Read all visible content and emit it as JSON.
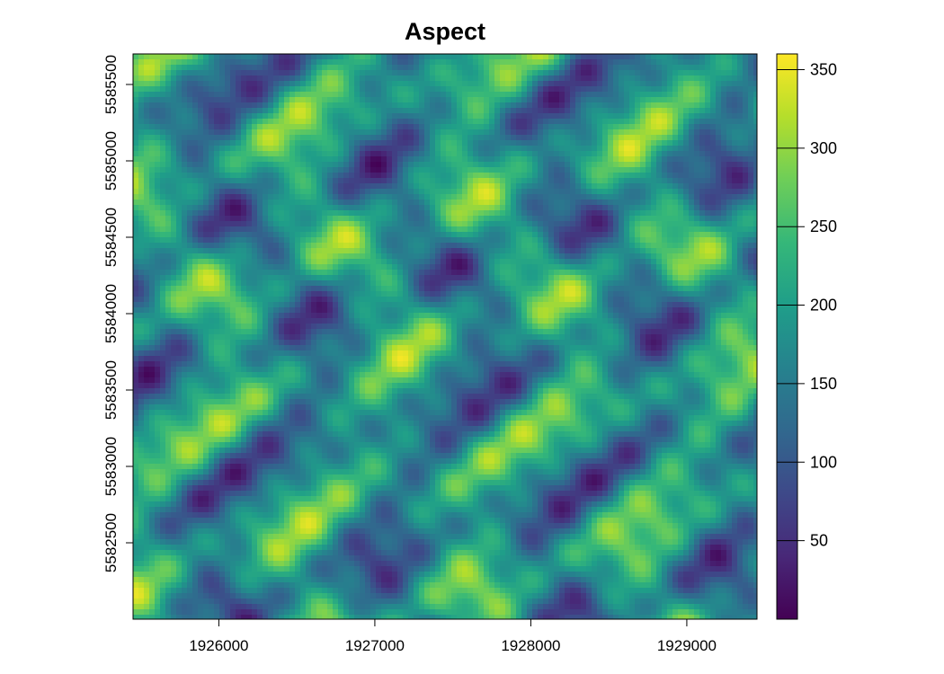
{
  "chart_data": {
    "type": "heatmap",
    "title": "Aspect",
    "xlabel": "",
    "ylabel": "",
    "xlim": [
      1925450,
      1929450
    ],
    "ylim": [
      5582000,
      5585700
    ],
    "x_ticks": [
      {
        "value": 1926000,
        "label": "1926000"
      },
      {
        "value": 1927000,
        "label": "1927000"
      },
      {
        "value": 1928000,
        "label": "1928000"
      },
      {
        "value": 1929000,
        "label": "1929000"
      }
    ],
    "y_ticks": [
      {
        "value": 5582500,
        "label": "5582500"
      },
      {
        "value": 5583000,
        "label": "5583000"
      },
      {
        "value": 5583500,
        "label": "5583500"
      },
      {
        "value": 5584000,
        "label": "5584000"
      },
      {
        "value": 5584500,
        "label": "5584500"
      },
      {
        "value": 5585000,
        "label": "5585000"
      },
      {
        "value": 5585500,
        "label": "5585500"
      }
    ],
    "colorbar": {
      "min": 0,
      "max": 360,
      "palette": "viridis",
      "colors": [
        "#440154",
        "#482878",
        "#3e4989",
        "#31688e",
        "#26828e",
        "#1f9e89",
        "#35b779",
        "#6ece58",
        "#b5de2b",
        "#fde725"
      ],
      "ticks": [
        {
          "value": 50,
          "label": "50"
        },
        {
          "value": 100,
          "label": "100"
        },
        {
          "value": 150,
          "label": "150"
        },
        {
          "value": 200,
          "label": "200"
        },
        {
          "value": 250,
          "label": "250"
        },
        {
          "value": 300,
          "label": "300"
        },
        {
          "value": 350,
          "label": "350"
        }
      ]
    }
  }
}
